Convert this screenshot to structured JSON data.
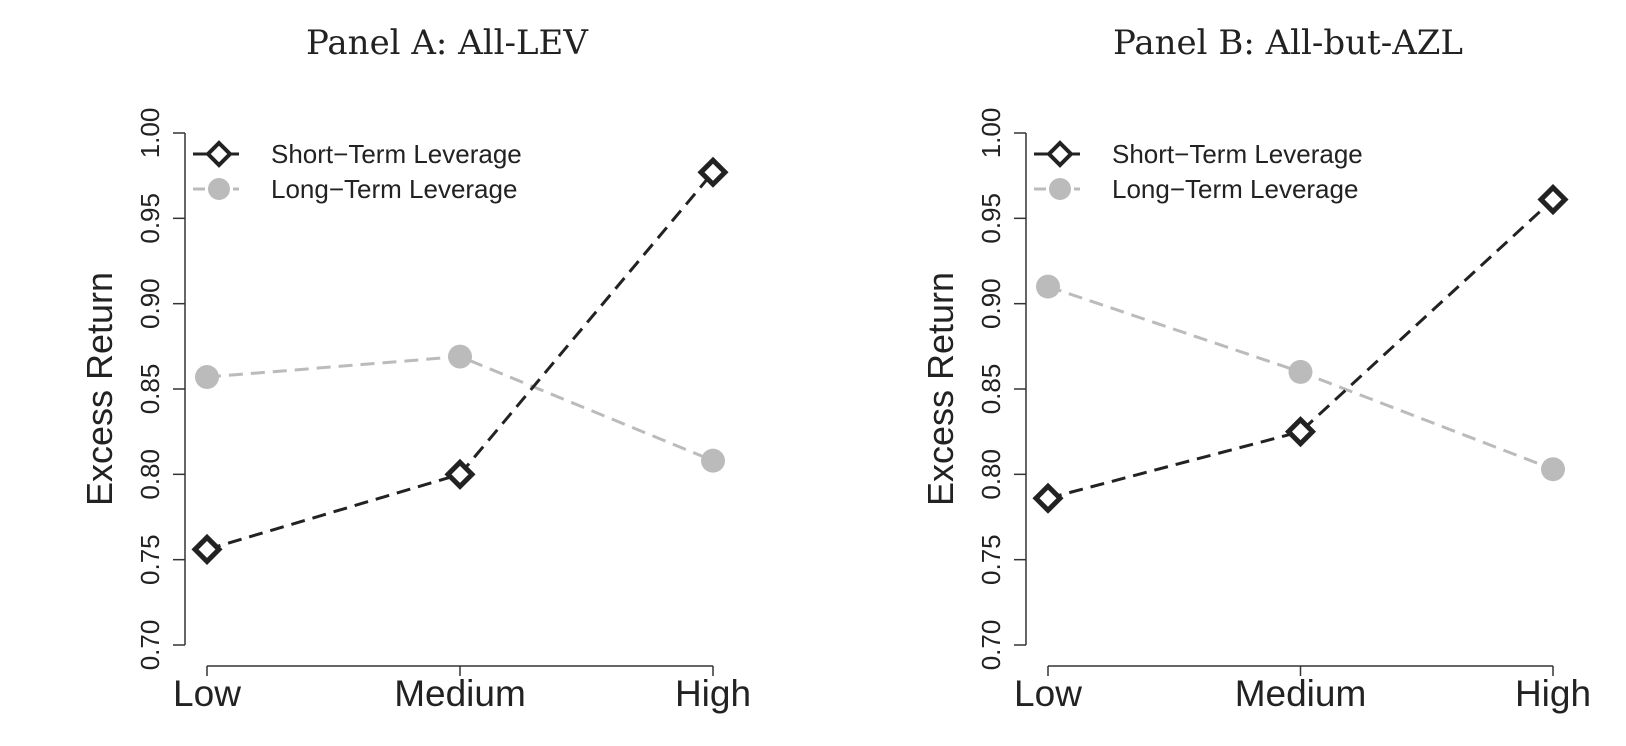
{
  "chart_data": [
    {
      "type": "line",
      "title": "Panel A: All-LEV",
      "ylabel": "Excess Return",
      "xlabel": "",
      "categories": [
        "Low",
        "Medium",
        "High"
      ],
      "ylim": [
        0.7,
        1.0
      ],
      "yticks": [
        "0.70",
        "0.75",
        "0.80",
        "0.85",
        "0.90",
        "0.95",
        "1.00"
      ],
      "legend_position": "top-left",
      "grid": false,
      "series": [
        {
          "name": "Short−Term Leverage",
          "values": [
            0.756,
            0.8,
            0.977
          ],
          "color": "#222222",
          "marker": "diamond",
          "line": "dashed"
        },
        {
          "name": "Long−Term Leverage",
          "values": [
            0.857,
            0.869,
            0.808
          ],
          "color": "#bbbbbb",
          "marker": "circle",
          "line": "dashed"
        }
      ]
    },
    {
      "type": "line",
      "title": "Panel B: All-but-AZL",
      "ylabel": "Excess Return",
      "xlabel": "",
      "categories": [
        "Low",
        "Medium",
        "High"
      ],
      "ylim": [
        0.7,
        1.0
      ],
      "yticks": [
        "0.70",
        "0.75",
        "0.80",
        "0.85",
        "0.90",
        "0.95",
        "1.00"
      ],
      "legend_position": "top-left",
      "grid": false,
      "series": [
        {
          "name": "Short−Term Leverage",
          "values": [
            0.786,
            0.825,
            0.961
          ],
          "color": "#222222",
          "marker": "diamond",
          "line": "dashed"
        },
        {
          "name": "Long−Term Leverage",
          "values": [
            0.91,
            0.86,
            0.803
          ],
          "color": "#bbbbbb",
          "marker": "circle",
          "line": "dashed"
        }
      ]
    }
  ]
}
